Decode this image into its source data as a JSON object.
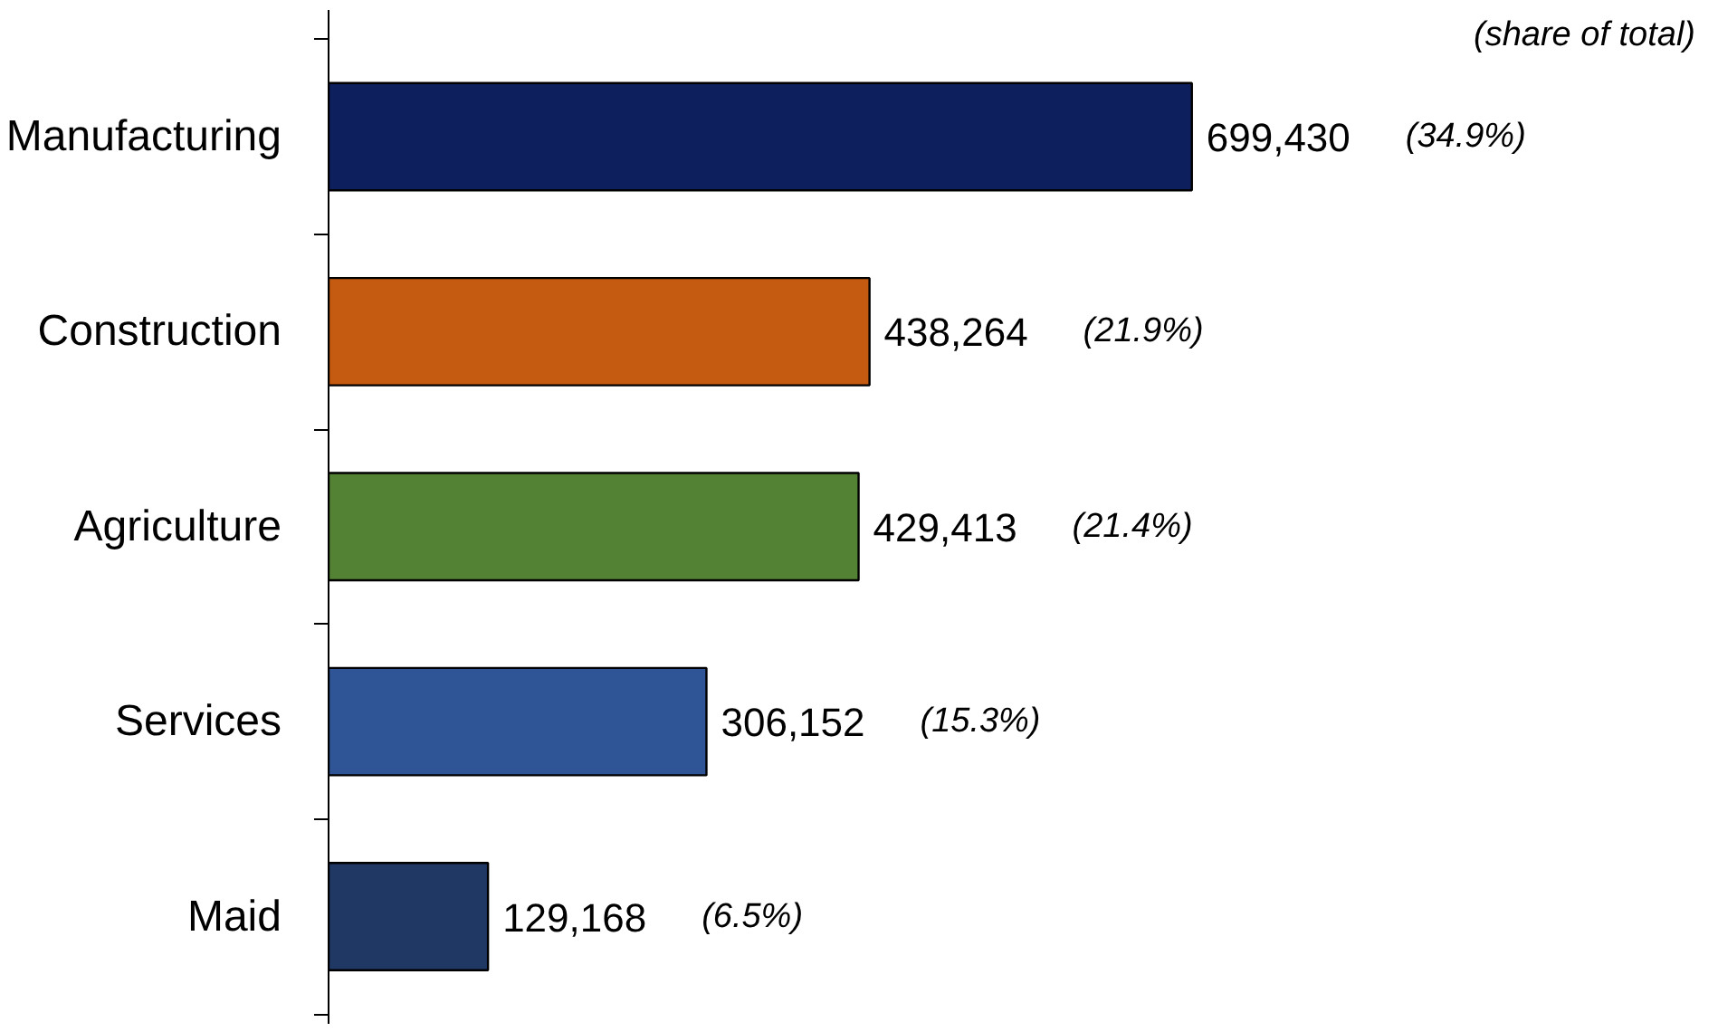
{
  "chart_data": {
    "type": "bar",
    "orientation": "horizontal",
    "categories": [
      "Manufacturing",
      "Construction",
      "Agriculture",
      "Services",
      "Maid"
    ],
    "values": [
      699430,
      438264,
      429413,
      306152,
      129168
    ],
    "value_labels": [
      "699,430",
      "438,264",
      "429,413",
      "306,152",
      "129,168"
    ],
    "colors": [
      "#0d1f5c",
      "#c55a11",
      "#548235",
      "#2f5597",
      "#1f3864"
    ],
    "tick_labels": "y",
    "annotations": [
      "(share of total)",
      "(34.9%)",
      "(21.9%)",
      "(21.4%)",
      "(15.3%)",
      "(6.5%)"
    ]
  }
}
